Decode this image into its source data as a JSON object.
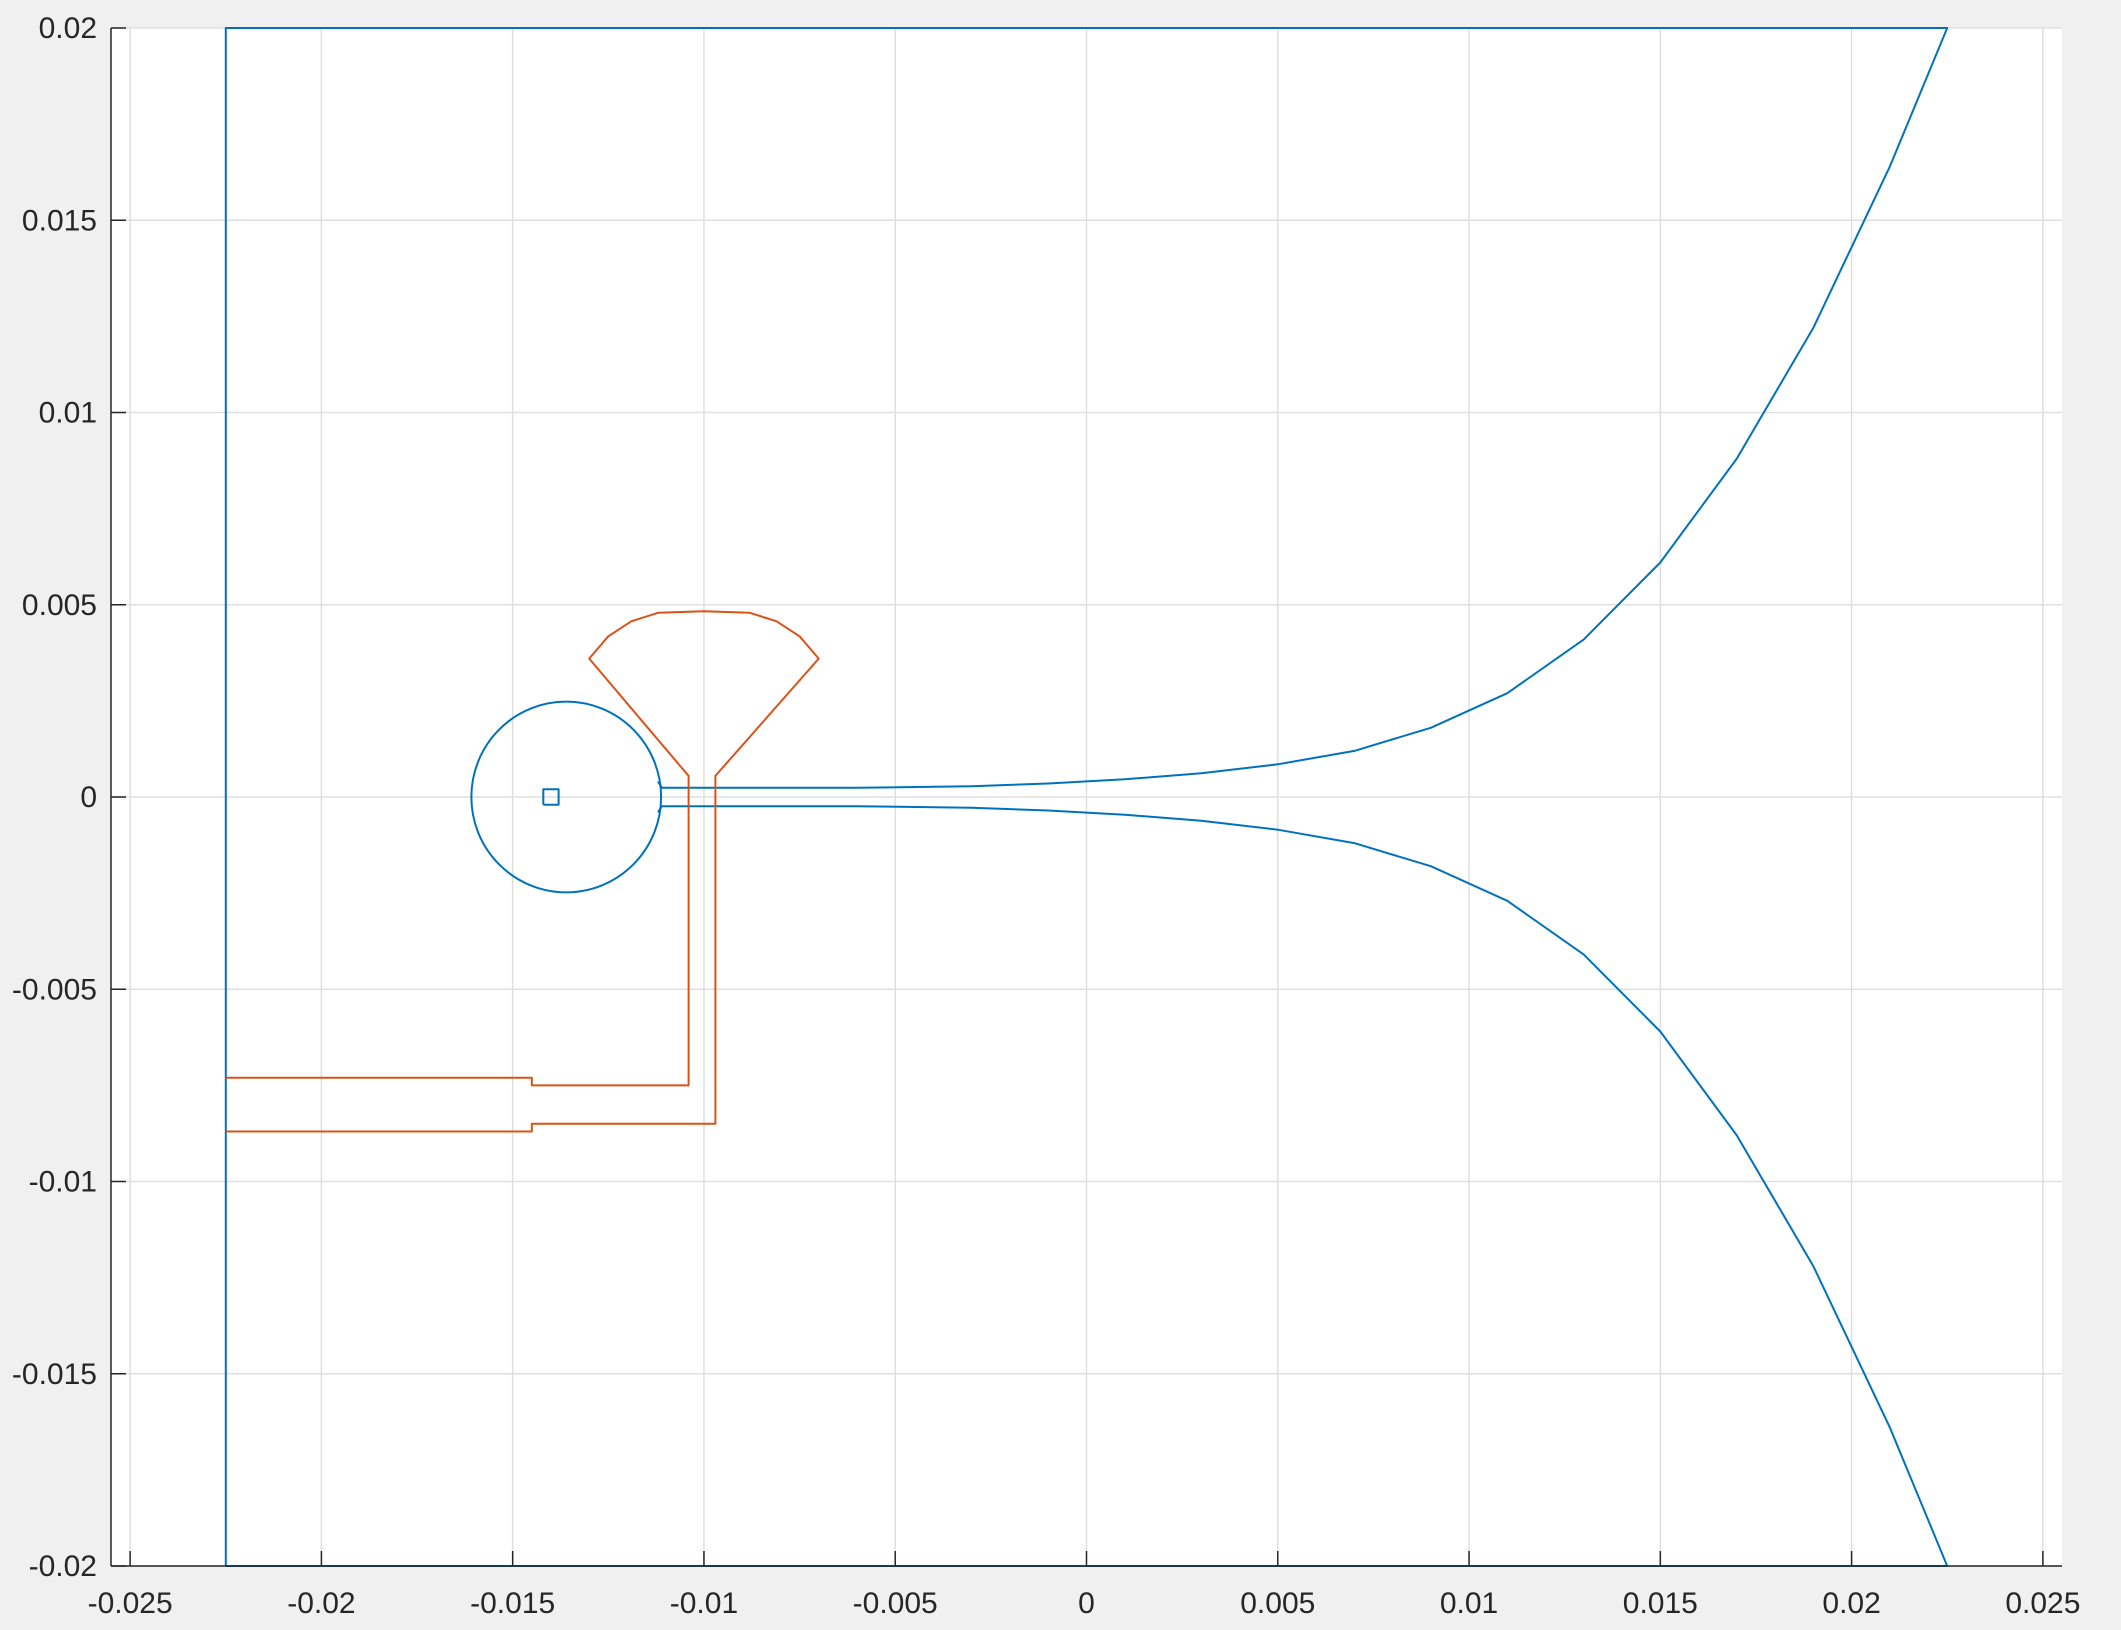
{
  "chart_data": {
    "type": "line",
    "title": "",
    "xlabel": "",
    "ylabel": "",
    "xlim": [
      -0.0255,
      0.0255
    ],
    "ylim": [
      -0.02,
      0.02
    ],
    "grid": true,
    "legend": "none",
    "xticks": [
      -0.025,
      -0.02,
      -0.015,
      -0.01,
      -0.005,
      0,
      0.005,
      0.01,
      0.015,
      0.02,
      0.025
    ],
    "xtick_labels": [
      "-0.025",
      "-0.02",
      "-0.015",
      "-0.01",
      "-0.005",
      "0",
      "0.005",
      "0.01",
      "0.015",
      "0.02",
      "0.025"
    ],
    "yticks": [
      -0.02,
      -0.015,
      -0.01,
      -0.005,
      0,
      0.005,
      0.01,
      0.015,
      0.02
    ],
    "ytick_labels": [
      "-0.02",
      "-0.015",
      "-0.01",
      "-0.005",
      "0",
      "0.005",
      "0.01",
      "0.015",
      "0.02"
    ],
    "colors": {
      "series_blue": "#0072BD",
      "series_orange": "#D95319",
      "grid": "#dfdfdf",
      "axis": "#262626",
      "plot_bg": "#ffffff",
      "figure_bg": "#f0f0f0"
    },
    "series": [
      {
        "color": "#0072BD",
        "points": [
          [
            -0.0225,
            -0.02
          ],
          [
            -0.0225,
            0.02
          ],
          [
            0.0225,
            0.02
          ],
          [
            0.021,
            0.0164
          ],
          [
            0.019,
            0.0122
          ],
          [
            0.017,
            0.0088
          ],
          [
            0.015,
            0.0061
          ],
          [
            0.013,
            0.0041
          ],
          [
            0.011,
            0.0027
          ],
          [
            0.009,
            0.0018
          ],
          [
            0.007,
            0.0012
          ],
          [
            0.005,
            0.00085
          ],
          [
            0.003,
            0.00062
          ],
          [
            0.001,
            0.00046
          ],
          [
            -0.001,
            0.00035
          ],
          [
            -0.003,
            0.00028
          ],
          [
            -0.006,
            0.00024
          ],
          [
            -0.0111,
            0.00024
          ],
          [
            -0.0112,
            0.0004
          ]
        ]
      },
      {
        "color": "#0072BD",
        "points": [
          [
            -0.0112,
            -0.0004
          ],
          [
            -0.0111,
            -0.00024
          ],
          [
            -0.006,
            -0.00024
          ],
          [
            -0.003,
            -0.00028
          ],
          [
            -0.001,
            -0.00035
          ],
          [
            0.001,
            -0.00046
          ],
          [
            0.003,
            -0.00062
          ],
          [
            0.005,
            -0.00085
          ],
          [
            0.007,
            -0.0012
          ],
          [
            0.009,
            -0.0018
          ],
          [
            0.011,
            -0.0027
          ],
          [
            0.013,
            -0.0041
          ],
          [
            0.015,
            -0.0061
          ],
          [
            0.017,
            -0.0088
          ],
          [
            0.019,
            -0.0122
          ],
          [
            0.021,
            -0.0164
          ],
          [
            0.0225,
            -0.02
          ],
          [
            -0.0225,
            -0.02
          ]
        ]
      },
      {
        "color": "#0072BD",
        "circle": {
          "cx": -0.0136,
          "cy": 0.0,
          "r": 0.00248
        }
      },
      {
        "color": "#0072BD",
        "points": [
          [
            -0.0142,
            -0.0002
          ],
          [
            -0.0138,
            -0.0002
          ],
          [
            -0.0138,
            0.0002
          ],
          [
            -0.0142,
            0.0002
          ],
          [
            -0.0142,
            -0.0002
          ]
        ]
      },
      {
        "color": "#D95319",
        "points": [
          [
            -0.0225,
            -0.0073
          ],
          [
            -0.0145,
            -0.0073
          ],
          [
            -0.0145,
            -0.0075
          ],
          [
            -0.0104,
            -0.0075
          ],
          [
            -0.0104,
            0.00055
          ],
          [
            -0.013,
            0.0036
          ],
          [
            -0.0125,
            0.00418
          ],
          [
            -0.0119,
            0.00457
          ],
          [
            -0.0112,
            0.00479
          ],
          [
            -0.01,
            0.00483
          ],
          [
            -0.0088,
            0.00479
          ],
          [
            -0.0081,
            0.00457
          ],
          [
            -0.0075,
            0.00418
          ],
          [
            -0.007,
            0.0036
          ],
          [
            -0.0097,
            0.00055
          ],
          [
            -0.0097,
            -0.0085
          ],
          [
            -0.0145,
            -0.0085
          ],
          [
            -0.0145,
            -0.0087
          ],
          [
            -0.0225,
            -0.0087
          ]
        ]
      }
    ]
  }
}
